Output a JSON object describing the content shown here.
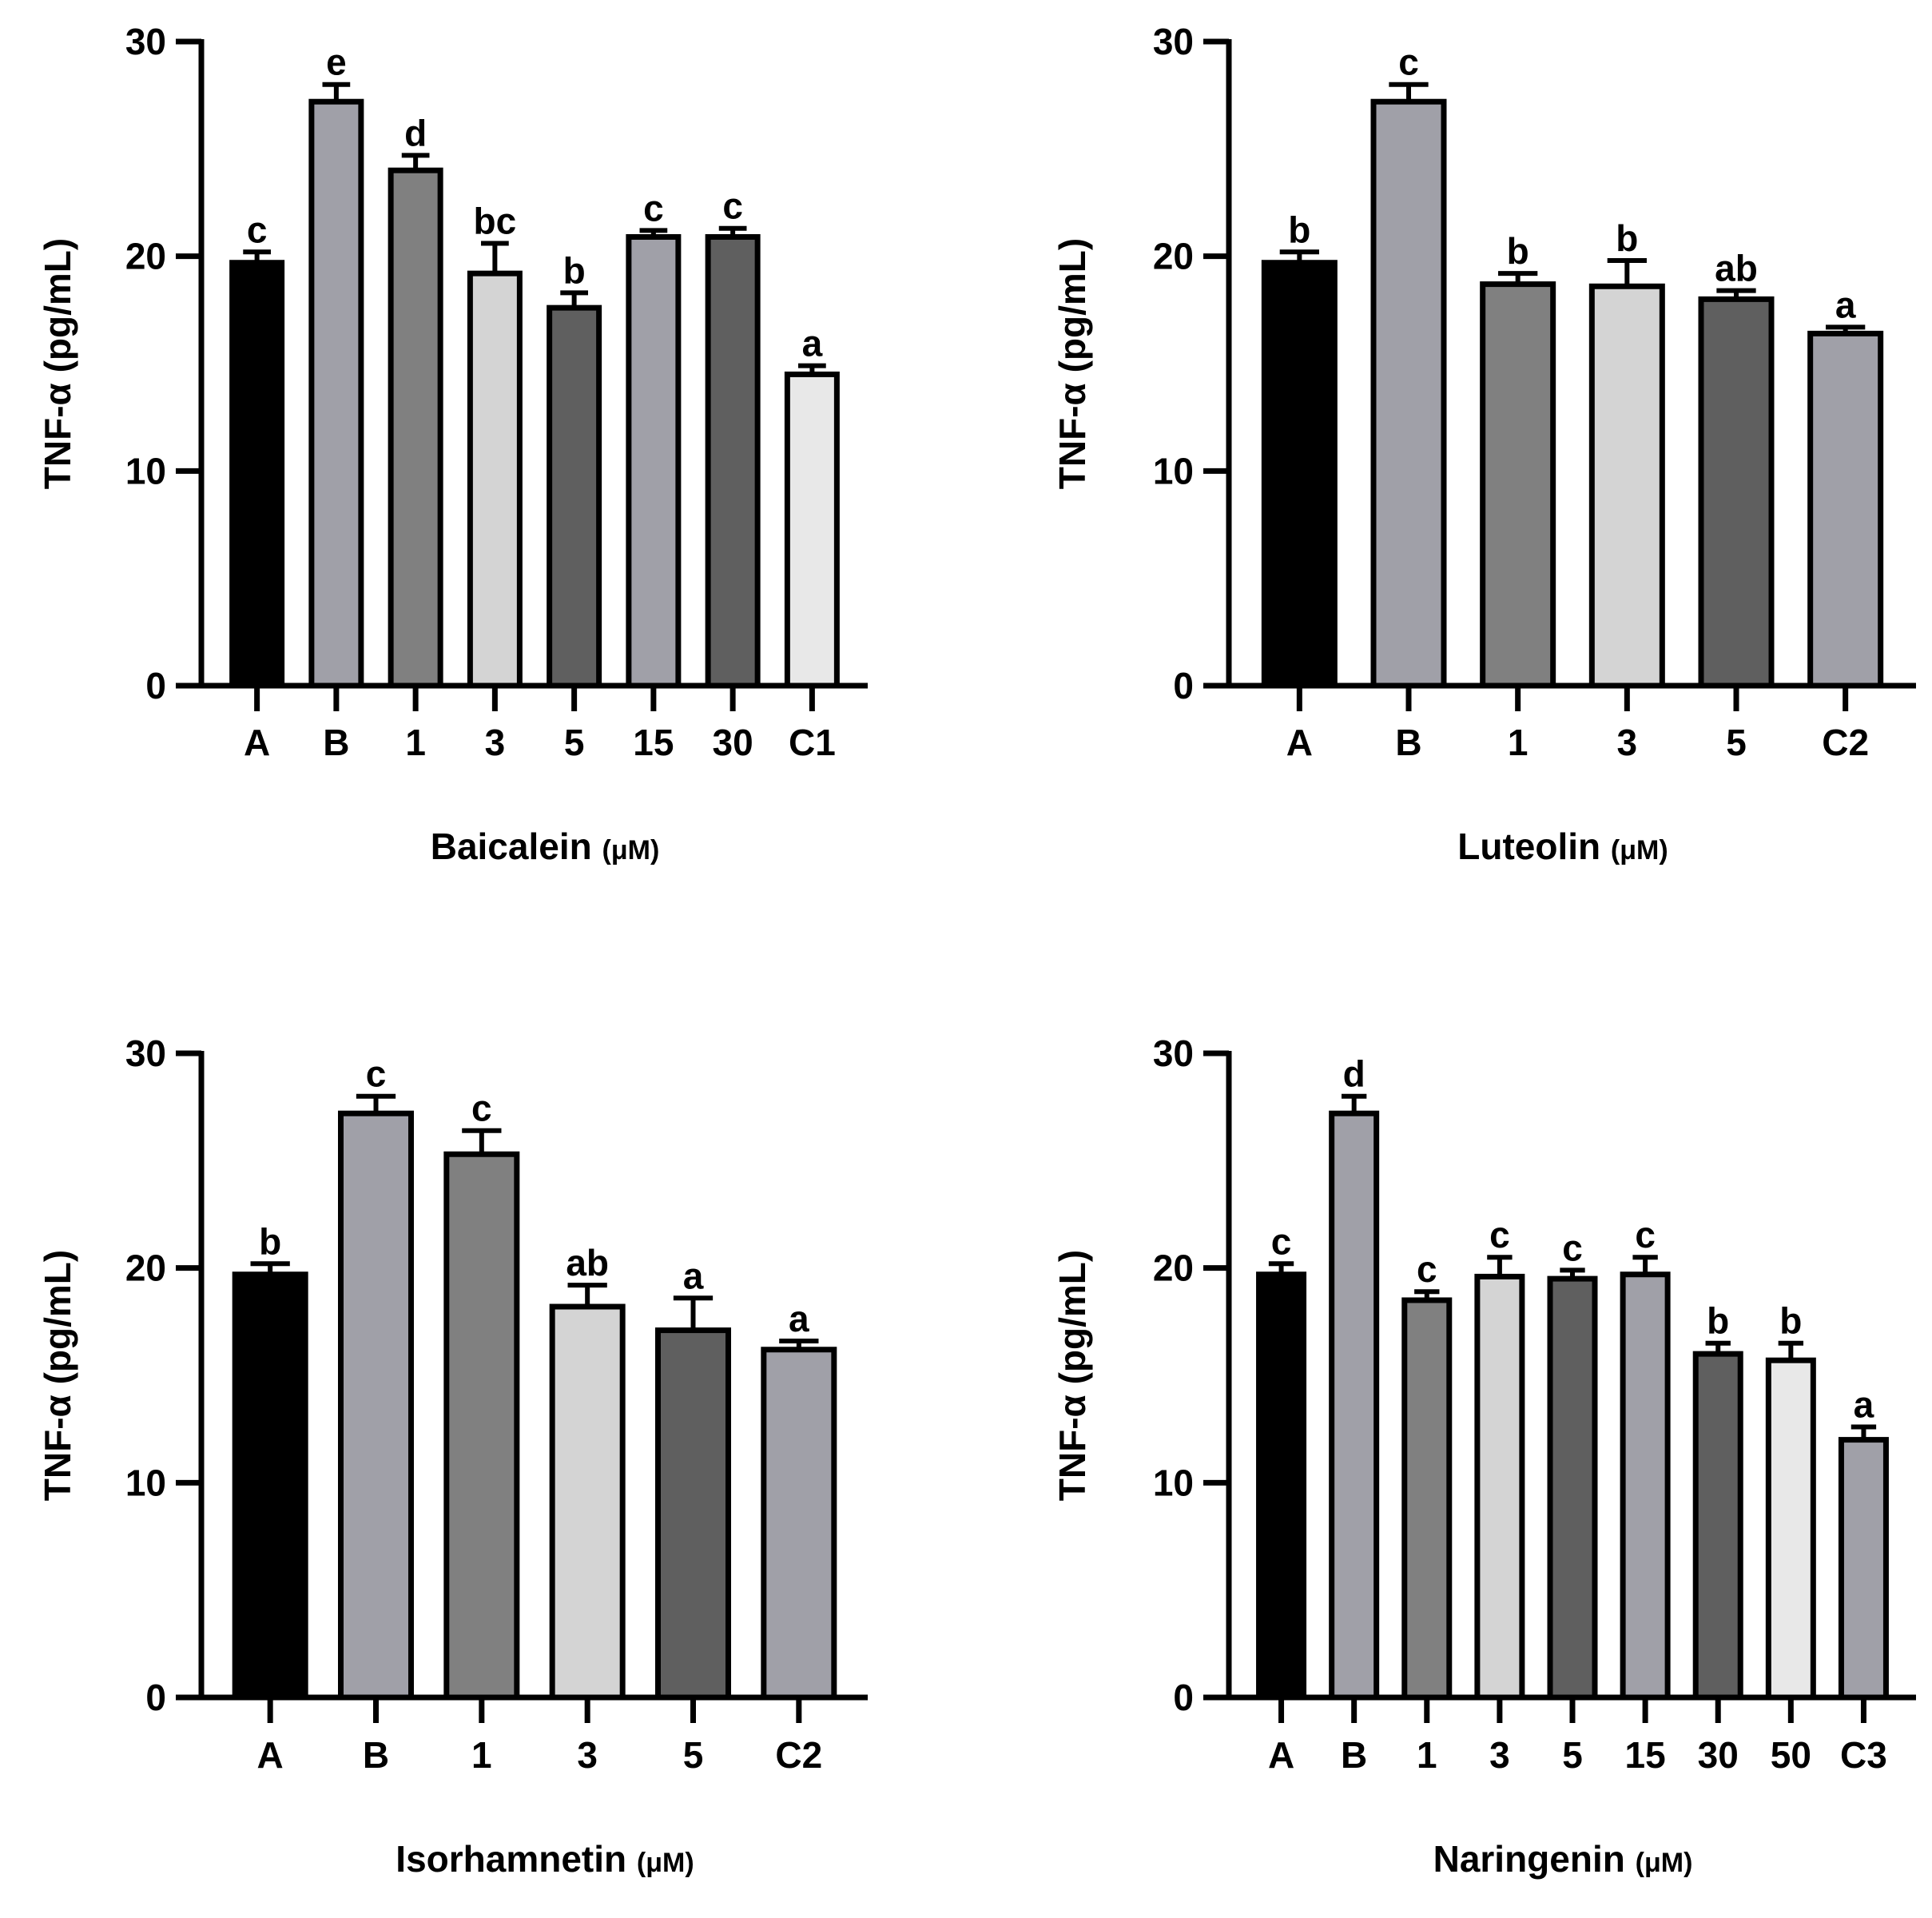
{
  "chart_data": [
    {
      "type": "bar",
      "title": "",
      "xlabel": "Baicalein",
      "xlabel_unit": "(μM)",
      "ylabel": "TNF-α (pg/mL)",
      "ylim": [
        0,
        30
      ],
      "yticks": [
        "0",
        "10",
        "20",
        "30"
      ],
      "categories": [
        "A",
        "B",
        "1",
        "3",
        "5",
        "15",
        "30",
        "C1"
      ],
      "values": [
        19.7,
        27.2,
        24.0,
        19.2,
        17.6,
        20.9,
        20.9,
        14.5
      ],
      "errors": [
        0.5,
        0.8,
        0.7,
        1.4,
        0.7,
        0.3,
        0.4,
        0.4
      ],
      "significance": [
        "c",
        "e",
        "d",
        "bc",
        "b",
        "c",
        "c",
        "a"
      ],
      "colors": [
        "#000000",
        "#a0a0a8",
        "#808080",
        "#d4d4d4",
        "#5f5f5f",
        "#a0a0a8",
        "#5f5f5f",
        "#e8e8e8"
      ]
    },
    {
      "type": "bar",
      "title": "",
      "xlabel": "Luteolin",
      "xlabel_unit": "(μM)",
      "ylabel": "TNF-α (pg/mL)",
      "ylim": [
        0,
        30
      ],
      "yticks": [
        "0",
        "10",
        "20",
        "30"
      ],
      "categories": [
        "A",
        "B",
        "1",
        "3",
        "5",
        "C2"
      ],
      "values": [
        19.7,
        27.2,
        18.7,
        18.6,
        18.0,
        16.4
      ],
      "errors": [
        0.5,
        0.8,
        0.5,
        1.2,
        0.4,
        0.3
      ],
      "significance": [
        "b",
        "c",
        "b",
        "b",
        "ab",
        "a"
      ],
      "colors": [
        "#000000",
        "#a0a0a8",
        "#808080",
        "#d4d4d4",
        "#5f5f5f",
        "#a0a0a8"
      ]
    },
    {
      "type": "bar",
      "title": "",
      "xlabel": "Isorhamnetin",
      "xlabel_unit": "(μM)",
      "ylabel": "TNF-α (pg/mL)",
      "ylim": [
        0,
        30
      ],
      "yticks": [
        "0",
        "10",
        "20",
        "30"
      ],
      "categories": [
        "A",
        "B",
        "1",
        "3",
        "5",
        "C2"
      ],
      "values": [
        19.7,
        27.2,
        25.3,
        18.2,
        17.1,
        16.2
      ],
      "errors": [
        0.5,
        0.8,
        1.1,
        1.0,
        1.5,
        0.4
      ],
      "significance": [
        "b",
        "c",
        "c",
        "ab",
        "a",
        "a"
      ],
      "colors": [
        "#000000",
        "#a0a0a8",
        "#808080",
        "#d4d4d4",
        "#5f5f5f",
        "#a0a0a8"
      ]
    },
    {
      "type": "bar",
      "title": "",
      "xlabel": "Naringenin",
      "xlabel_unit": "(μM)",
      "ylabel": "TNF-α (pg/mL)",
      "ylim": [
        0,
        30
      ],
      "yticks": [
        "0",
        "10",
        "20",
        "30"
      ],
      "categories": [
        "A",
        "B",
        "1",
        "3",
        "5",
        "15",
        "30",
        "50",
        "C3"
      ],
      "values": [
        19.7,
        27.2,
        18.5,
        19.6,
        19.5,
        19.7,
        16.0,
        15.7,
        12.0
      ],
      "errors": [
        0.5,
        0.8,
        0.4,
        0.9,
        0.4,
        0.8,
        0.5,
        0.8,
        0.6
      ],
      "significance": [
        "c",
        "d",
        "c",
        "c",
        "c",
        "c",
        "b",
        "b",
        "a"
      ],
      "colors": [
        "#000000",
        "#a0a0a8",
        "#808080",
        "#d4d4d4",
        "#5f5f5f",
        "#a0a0a8",
        "#5f5f5f",
        "#e8e8e8",
        "#a0a0a8"
      ]
    }
  ]
}
